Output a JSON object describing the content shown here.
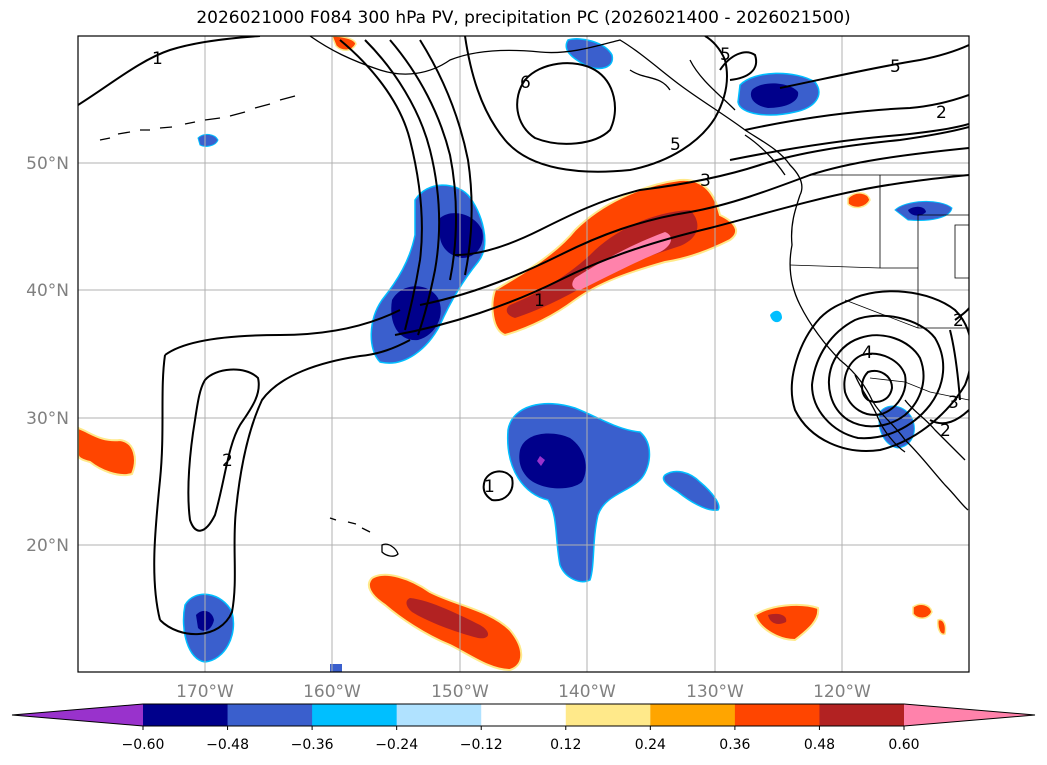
{
  "title": "2026021000 F084 300 hPa PV, precipitation PC (2026021400 - 2026021500)",
  "axes": {
    "lon_ticks": [
      "170°W",
      "160°W",
      "150°W",
      "140°W",
      "130°W",
      "120°W"
    ],
    "lat_ticks": [
      "50°N",
      "40°N",
      "30°N",
      "20°N"
    ],
    "lon_range_deg": [
      -180,
      -110
    ],
    "lat_range_deg": [
      10,
      60
    ],
    "grid": true
  },
  "colorbar": {
    "orientation": "horizontal",
    "extend": "both",
    "boundaries": [
      -0.6,
      -0.48,
      -0.36,
      -0.24,
      -0.12,
      0.12,
      0.24,
      0.36,
      0.48,
      0.6
    ],
    "tick_labels": [
      "−0.60",
      "−0.48",
      "−0.36",
      "−0.24",
      "−0.12",
      "0.12",
      "0.24",
      "0.36",
      "0.48",
      "0.60"
    ],
    "colors": [
      "#9932cc",
      "#00008b",
      "#3a5fcd",
      "#00bfff",
      "#b0e2ff",
      "#ffffff",
      "#ffe98a",
      "#ffa500",
      "#ff4500",
      "#b22222",
      "#ff82ab"
    ]
  },
  "contour_labels": [
    "1",
    "6",
    "5",
    "5",
    "5",
    "2",
    "3",
    "1",
    "2",
    "1",
    "4",
    "3",
    "2",
    "2"
  ],
  "colors": {
    "contour": "#000000",
    "coast": "#000000",
    "grid": "#b0b0b0",
    "axis_tick_label": "#808080"
  }
}
